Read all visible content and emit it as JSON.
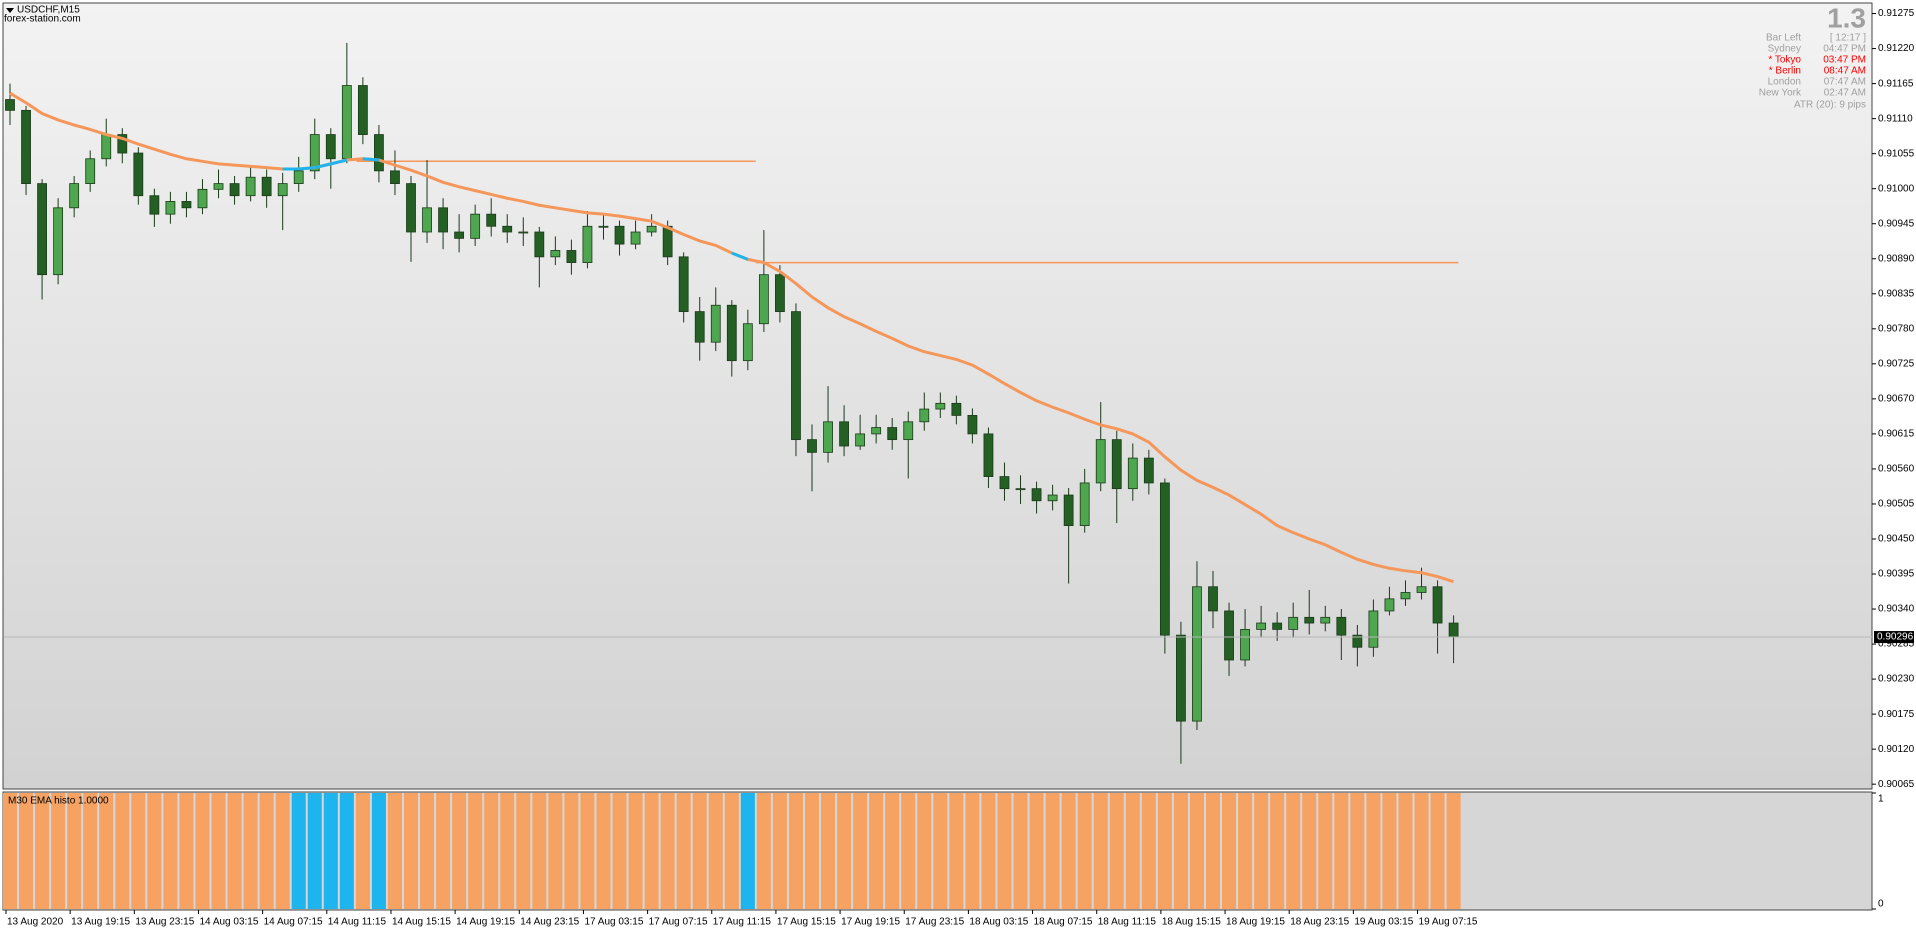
{
  "header": {
    "symbol": "USDCHF,M15",
    "source": "forex-station.com"
  },
  "info_panel": {
    "big": "1.3",
    "rows": [
      {
        "label": "Bar Left",
        "value": "[ 12:17 ]",
        "color": "#a0a0a0"
      },
      {
        "label": "Sydney",
        "value": "04:47 PM",
        "color": "#a0a0a0"
      },
      {
        "label": "* Tokyo",
        "value": "03:47 PM",
        "color": "#ff0000"
      },
      {
        "label": "* Berlin",
        "value": "08:47 AM",
        "color": "#ff0000"
      },
      {
        "label": "London",
        "value": "07:47 AM",
        "color": "#a0a0a0"
      },
      {
        "label": "New York",
        "value": "02:47 AM",
        "color": "#a0a0a0"
      }
    ],
    "atr": "ATR (20): 9 pips"
  },
  "chart_data": [
    {
      "type": "candlestick",
      "categories": [
        "13 Aug 2020",
        null,
        null,
        null,
        "13 Aug 19:15",
        null,
        null,
        null,
        "13 Aug 23:15",
        null,
        null,
        null,
        "14 Aug 03:15",
        null,
        null,
        null,
        "14 Aug 07:15",
        null,
        null,
        null,
        "14 Aug 11:15",
        null,
        null,
        null,
        "14 Aug 15:15",
        null,
        null,
        null,
        "14 Aug 19:15",
        null,
        null,
        null,
        "14 Aug 23:15",
        null,
        null,
        null,
        "17 Aug 03:15",
        null,
        null,
        null,
        "17 Aug 07:15",
        null,
        null,
        null,
        "17 Aug 11:15",
        null,
        null,
        null,
        "17 Aug 15:15",
        null,
        null,
        null,
        "17 Aug 19:15",
        null,
        null,
        null,
        "17 Aug 23:15",
        null,
        null,
        null,
        "18 Aug 03:15",
        null,
        null,
        null,
        "18 Aug 07:15",
        null,
        null,
        null,
        "18 Aug 11:15",
        null,
        null,
        null,
        "18 Aug 15:15",
        null,
        null,
        null,
        "18 Aug 19:15",
        null,
        null,
        null,
        "18 Aug 23:15",
        null,
        null,
        null,
        "19 Aug 03:15",
        null,
        null,
        null,
        "19 Aug 07:15",
        null,
        null
      ],
      "open": [
        0.9114,
        0.91123,
        0.91008,
        0.90865,
        0.9097,
        0.91008,
        0.91047,
        0.91085,
        0.91056,
        0.90989,
        0.9096,
        0.9098,
        0.9097,
        0.90999,
        0.91008,
        0.90989,
        0.91018,
        0.90989,
        0.91008,
        0.91028,
        0.91085,
        0.91047,
        0.91162,
        0.91085,
        0.91028,
        0.91008,
        0.90932,
        0.9097,
        0.90932,
        0.90922,
        0.9096,
        0.90941,
        0.90932,
        0.90932,
        0.90893,
        0.90903,
        0.90884,
        0.90941,
        0.90941,
        0.90913,
        0.90932,
        0.90941,
        0.90893,
        0.90807,
        0.90759,
        0.90817,
        0.9073,
        0.90788,
        0.90865,
        0.90807,
        0.90606,
        0.90586,
        0.90634,
        0.90596,
        0.90615,
        0.90625,
        0.90606,
        0.90634,
        0.90654,
        0.90663,
        0.90644,
        0.90615,
        0.90548,
        0.90529,
        0.90529,
        0.9051,
        0.90519,
        0.90471,
        0.90538,
        0.90606,
        0.90529,
        0.90577,
        0.90538,
        0.90299,
        0.90164,
        0.90375,
        0.90337,
        0.9026,
        0.90308,
        0.90318,
        0.90308,
        0.90327,
        0.90318,
        0.90327,
        0.90299,
        0.9028,
        0.90337,
        0.90356,
        0.90366,
        0.90375,
        0.90318
      ],
      "high": [
        0.91165,
        0.9113,
        0.91015,
        0.90985,
        0.9102,
        0.9106,
        0.9111,
        0.91095,
        0.91065,
        0.91,
        0.90995,
        0.90995,
        0.91015,
        0.9103,
        0.9102,
        0.91035,
        0.9103,
        0.91025,
        0.9105,
        0.9111,
        0.91095,
        0.91229,
        0.91175,
        0.911,
        0.9106,
        0.9102,
        0.91045,
        0.90985,
        0.9096,
        0.90975,
        0.90985,
        0.9096,
        0.90955,
        0.9094,
        0.90925,
        0.9092,
        0.90965,
        0.9096,
        0.9095,
        0.9095,
        0.9096,
        0.9095,
        0.909,
        0.9083,
        0.90845,
        0.90825,
        0.9081,
        0.90935,
        0.9088,
        0.9082,
        0.9063,
        0.9069,
        0.9066,
        0.90645,
        0.90645,
        0.9064,
        0.9065,
        0.9068,
        0.9068,
        0.90675,
        0.90655,
        0.90625,
        0.9057,
        0.9055,
        0.9054,
        0.90535,
        0.9053,
        0.9056,
        0.90665,
        0.9062,
        0.906,
        0.9059,
        0.90545,
        0.9032,
        0.90415,
        0.904,
        0.9035,
        0.9034,
        0.90345,
        0.90335,
        0.9035,
        0.9037,
        0.90345,
        0.9034,
        0.90315,
        0.90355,
        0.90375,
        0.90385,
        0.90405,
        0.90385,
        0.9033
      ],
      "low": [
        0.911,
        0.9099,
        0.90826,
        0.9085,
        0.90955,
        0.90995,
        0.91035,
        0.9104,
        0.90975,
        0.9094,
        0.90945,
        0.90955,
        0.9096,
        0.90985,
        0.90975,
        0.9098,
        0.9097,
        0.90935,
        0.90995,
        0.91015,
        0.91,
        0.9104,
        0.9107,
        0.9101,
        0.9099,
        0.90885,
        0.90915,
        0.90905,
        0.909,
        0.9091,
        0.90925,
        0.90915,
        0.9091,
        0.90845,
        0.9088,
        0.90865,
        0.90875,
        0.9092,
        0.90895,
        0.90905,
        0.90925,
        0.9088,
        0.9079,
        0.9073,
        0.90745,
        0.90705,
        0.90715,
        0.90775,
        0.9079,
        0.9058,
        0.90525,
        0.9057,
        0.9058,
        0.9059,
        0.906,
        0.9059,
        0.90545,
        0.9062,
        0.9064,
        0.9063,
        0.906,
        0.9053,
        0.9051,
        0.90505,
        0.9049,
        0.90495,
        0.9038,
        0.9046,
        0.90525,
        0.90475,
        0.9051,
        0.9052,
        0.9027,
        0.90097,
        0.9015,
        0.9031,
        0.90235,
        0.9025,
        0.90295,
        0.9029,
        0.90295,
        0.903,
        0.90305,
        0.9026,
        0.9025,
        0.90265,
        0.9033,
        0.90345,
        0.90355,
        0.9027,
        0.90255
      ],
      "close": [
        0.91123,
        0.91008,
        0.90865,
        0.9097,
        0.91008,
        0.91047,
        0.91085,
        0.91056,
        0.90989,
        0.9096,
        0.9098,
        0.9097,
        0.90999,
        0.91008,
        0.90989,
        0.91018,
        0.90989,
        0.91008,
        0.91028,
        0.91085,
        0.91047,
        0.91162,
        0.91085,
        0.91028,
        0.91008,
        0.90932,
        0.9097,
        0.90932,
        0.90922,
        0.9096,
        0.90941,
        0.90932,
        0.90932,
        0.90893,
        0.90903,
        0.90884,
        0.90941,
        0.90941,
        0.90913,
        0.90932,
        0.90941,
        0.90893,
        0.90807,
        0.90759,
        0.90817,
        0.9073,
        0.90788,
        0.90865,
        0.90807,
        0.90606,
        0.90586,
        0.90634,
        0.90596,
        0.90615,
        0.90625,
        0.90606,
        0.90634,
        0.90654,
        0.90663,
        0.90644,
        0.90615,
        0.90548,
        0.90529,
        0.90529,
        0.9051,
        0.90519,
        0.90471,
        0.90538,
        0.90606,
        0.90529,
        0.90577,
        0.90538,
        0.90299,
        0.90164,
        0.90375,
        0.90337,
        0.9026,
        0.90308,
        0.90318,
        0.90308,
        0.90327,
        0.90318,
        0.90327,
        0.90299,
        0.9028,
        0.90337,
        0.90356,
        0.90366,
        0.90375,
        0.90318,
        0.90296
      ],
      "up_color": "#4ea64e",
      "down_color": "#245f24",
      "ema_values": [
        0.9115,
        0.91135,
        0.91118,
        0.91108,
        0.911,
        0.91093,
        0.91085,
        0.91079,
        0.9107,
        0.91062,
        0.91054,
        0.91047,
        0.91043,
        0.91039,
        0.91037,
        0.91035,
        0.91033,
        0.91031,
        0.91031,
        0.91033,
        0.91039,
        0.91045,
        0.91047,
        0.91045,
        0.91037,
        0.91029,
        0.9102,
        0.9101,
        0.91003,
        0.90997,
        0.90991,
        0.90985,
        0.9098,
        0.90974,
        0.9097,
        0.90966,
        0.90962,
        0.9096,
        0.90957,
        0.90953,
        0.90949,
        0.90939,
        0.90928,
        0.90918,
        0.90911,
        0.90899,
        0.90889,
        0.90884,
        0.9087,
        0.90851,
        0.9083,
        0.90813,
        0.90799,
        0.90788,
        0.90776,
        0.90765,
        0.90753,
        0.90744,
        0.90738,
        0.90732,
        0.90723,
        0.90709,
        0.90694,
        0.9068,
        0.90667,
        0.90657,
        0.90648,
        0.90638,
        0.90629,
        0.90623,
        0.90615,
        0.90602,
        0.90579,
        0.90558,
        0.90542,
        0.90531,
        0.90519,
        0.90504,
        0.90489,
        0.90471,
        0.9046,
        0.9045,
        0.90441,
        0.90429,
        0.90418,
        0.9041,
        0.90404,
        0.904,
        0.90397,
        0.90391,
        0.90383
      ],
      "ema_color": "#f5975a",
      "levels": [
        0.91043,
        0.90884
      ],
      "level_color": "#f5975a",
      "current_price": 0.90296,
      "ylim": [
        0.90059,
        0.9129
      ],
      "yticks": [
        0.90065,
        {
          "value": 0.9012,
          "label": "0.90120"
        },
        0.90175,
        {
          "value": 0.9023,
          "label": "0.90230"
        },
        0.90285,
        {
          "value": 0.9034,
          "label": "0.90340"
        },
        0.90395,
        {
          "value": 0.9045,
          "label": "0.90450"
        },
        0.90505,
        {
          "value": 0.9056,
          "label": "0.90560"
        },
        0.90615,
        {
          "value": 0.9067,
          "label": "0.90670"
        },
        0.90725,
        {
          "value": 0.9078,
          "label": "0.90780"
        },
        0.90835,
        {
          "value": 0.9089,
          "label": "0.90890"
        },
        0.90945,
        {
          "value": 0.91,
          "label": "0.91000"
        },
        0.91055,
        {
          "value": 0.9111,
          "label": "0.91110"
        },
        0.91165,
        {
          "value": 0.9122,
          "label": "0.91220"
        },
        0.91275
      ]
    },
    {
      "type": "bar",
      "title": "M30 EMA histo 1.0000",
      "values": [
        1,
        1,
        1,
        1,
        1,
        1,
        1,
        1,
        1,
        1,
        1,
        1,
        1,
        1,
        1,
        1,
        1,
        1,
        1,
        1,
        1,
        1,
        1,
        1,
        1,
        1,
        1,
        1,
        1,
        1,
        1,
        1,
        1,
        1,
        1,
        1,
        1,
        1,
        1,
        1,
        1,
        1,
        1,
        1,
        1,
        1,
        1,
        1,
        1,
        1,
        1,
        1,
        1,
        1,
        1,
        1,
        1,
        1,
        1,
        1,
        1,
        1,
        1,
        1,
        1,
        1,
        1,
        1,
        1,
        1,
        1,
        1,
        1,
        1,
        1,
        1,
        1,
        1,
        1,
        1,
        1,
        1,
        1,
        1,
        1,
        1,
        1,
        1,
        1,
        1,
        1
      ],
      "colors": [
        "#f5a263",
        "#f5a263",
        "#f5a263",
        "#f5a263",
        "#f5a263",
        "#f5a263",
        "#f5a263",
        "#f5a263",
        "#f5a263",
        "#f5a263",
        "#f5a263",
        "#f5a263",
        "#f5a263",
        "#f5a263",
        "#f5a263",
        "#f5a263",
        "#f5a263",
        "#f5a263",
        "#1eb4ee",
        "#1eb4ee",
        "#1eb4ee",
        "#1eb4ee",
        "#f5a263",
        "#1eb4ee",
        "#f5a263",
        "#f5a263",
        "#f5a263",
        "#f5a263",
        "#f5a263",
        "#f5a263",
        "#f5a263",
        "#f5a263",
        "#f5a263",
        "#f5a263",
        "#f5a263",
        "#f5a263",
        "#f5a263",
        "#f5a263",
        "#f5a263",
        "#f5a263",
        "#f5a263",
        "#f5a263",
        "#f5a263",
        "#f5a263",
        "#f5a263",
        "#f5a263",
        "#1eb4ee",
        "#f5a263",
        "#f5a263",
        "#f5a263",
        "#f5a263",
        "#f5a263",
        "#f5a263",
        "#f5a263",
        "#f5a263",
        "#f5a263",
        "#f5a263",
        "#f5a263",
        "#f5a263",
        "#f5a263",
        "#f5a263",
        "#f5a263",
        "#f5a263",
        "#f5a263",
        "#f5a263",
        "#f5a263",
        "#f5a263",
        "#f5a263",
        "#f5a263",
        "#f5a263",
        "#f5a263",
        "#f5a263",
        "#f5a263",
        "#f5a263",
        "#f5a263",
        "#f5a263",
        "#f5a263",
        "#f5a263",
        "#f5a263",
        "#f5a263",
        "#f5a263",
        "#f5a263",
        "#f5a263",
        "#f5a263",
        "#f5a263",
        "#f5a263",
        "#f5a263",
        "#f5a263",
        "#f5a263",
        "#f5a263",
        "#f5a263"
      ],
      "ylim": [
        0,
        1
      ],
      "yticks": [
        0,
        1
      ]
    }
  ]
}
